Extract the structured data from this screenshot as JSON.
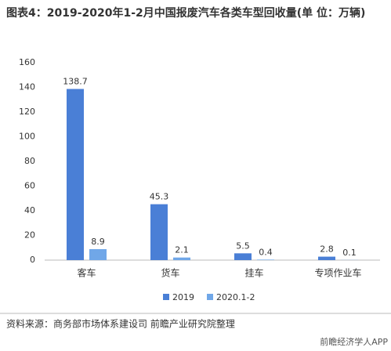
{
  "chart_data": {
    "type": "bar",
    "title": "图表4：2019-2020年1-2月中国报废汽车各类车型回收量(单 位：万辆)",
    "categories": [
      "客车",
      "货车",
      "挂车",
      "专项作业车"
    ],
    "series": [
      {
        "name": "2019",
        "color": "#4a7fd6",
        "values": [
          138.7,
          45.3,
          5.5,
          2.8
        ]
      },
      {
        "name": "2020.1-2",
        "color": "#70a7e8",
        "values": [
          8.9,
          2.1,
          0.4,
          0.1
        ]
      }
    ],
    "ylim": [
      0,
      160
    ],
    "yticks": [
      0,
      20,
      40,
      60,
      80,
      100,
      120,
      140,
      160
    ],
    "grid": false,
    "legend": "bottom",
    "source": "资料来源：商务部市场体系建设司 前瞻产业研究院整理",
    "watermark": "前瞻经济学人APP"
  }
}
